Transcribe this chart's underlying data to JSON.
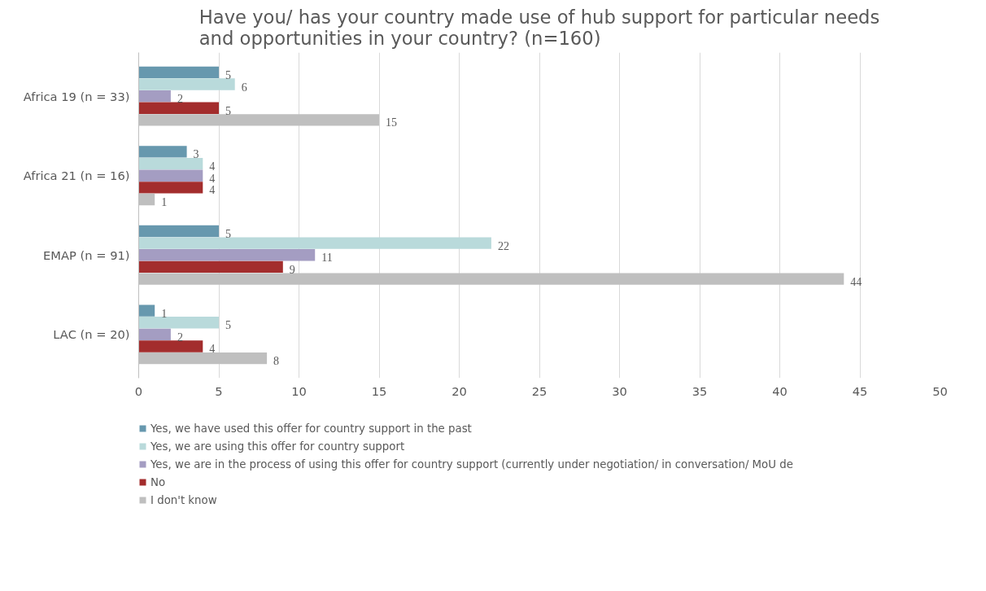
{
  "chart_data": {
    "type": "bar",
    "orientation": "horizontal",
    "title": "Have you/ has your country made use of hub support for particular needs\nand opportunities in your country? (n=160)",
    "categories": [
      "Africa 19 (n = 33)",
      "Africa 21 (n = 16)",
      "EMAP (n = 91)",
      "LAC (n = 20)"
    ],
    "series": [
      {
        "name": "Yes, we have used this offer for country support in the past",
        "color": "#6798ae",
        "values": [
          5,
          3,
          5,
          1
        ]
      },
      {
        "name": "Yes, we are using this offer for country support",
        "color": "#b9dadb",
        "values": [
          6,
          4,
          22,
          5
        ]
      },
      {
        "name": "Yes, we are in the process of using this offer for country support (currently under negotiation/ in conversation/ MoU de",
        "color": "#a49dc2",
        "values": [
          2,
          4,
          11,
          2
        ]
      },
      {
        "name": "No",
        "color": "#a32d2d",
        "values": [
          5,
          4,
          9,
          4
        ]
      },
      {
        "name": "I don't know",
        "color": "#bfbfbf",
        "values": [
          15,
          1,
          44,
          8
        ]
      }
    ],
    "xlim": [
      0,
      50
    ],
    "xticks": [
      0,
      5,
      10,
      15,
      20,
      25,
      30,
      35,
      40,
      45,
      50
    ],
    "grid": "x",
    "legend": "bottom",
    "data_labels": true
  }
}
